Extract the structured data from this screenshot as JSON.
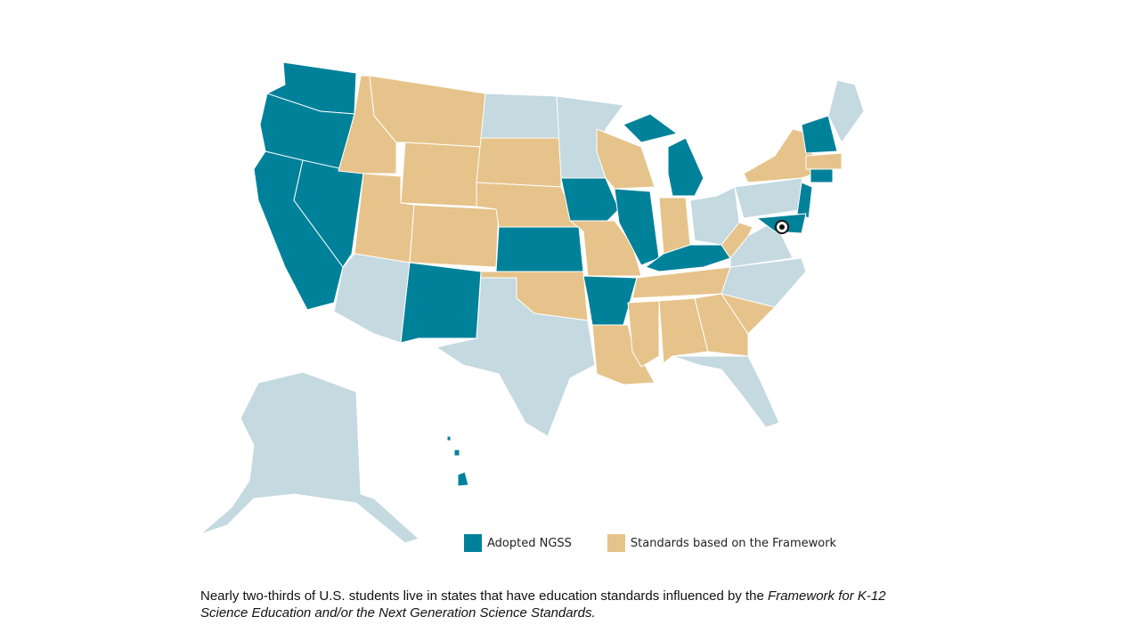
{
  "legend": [
    {
      "label": "Adopted NGSS",
      "color": "#00819a"
    },
    {
      "label": "Standards based on the Framework",
      "color": "#e6c38a"
    }
  ],
  "caption": {
    "text": "Nearly two-thirds of U.S. students live in states that have education standards influenced by the ",
    "emphasis": "Framework for K-12 Science Education and/or the Next Generation Science Standards."
  }
}
